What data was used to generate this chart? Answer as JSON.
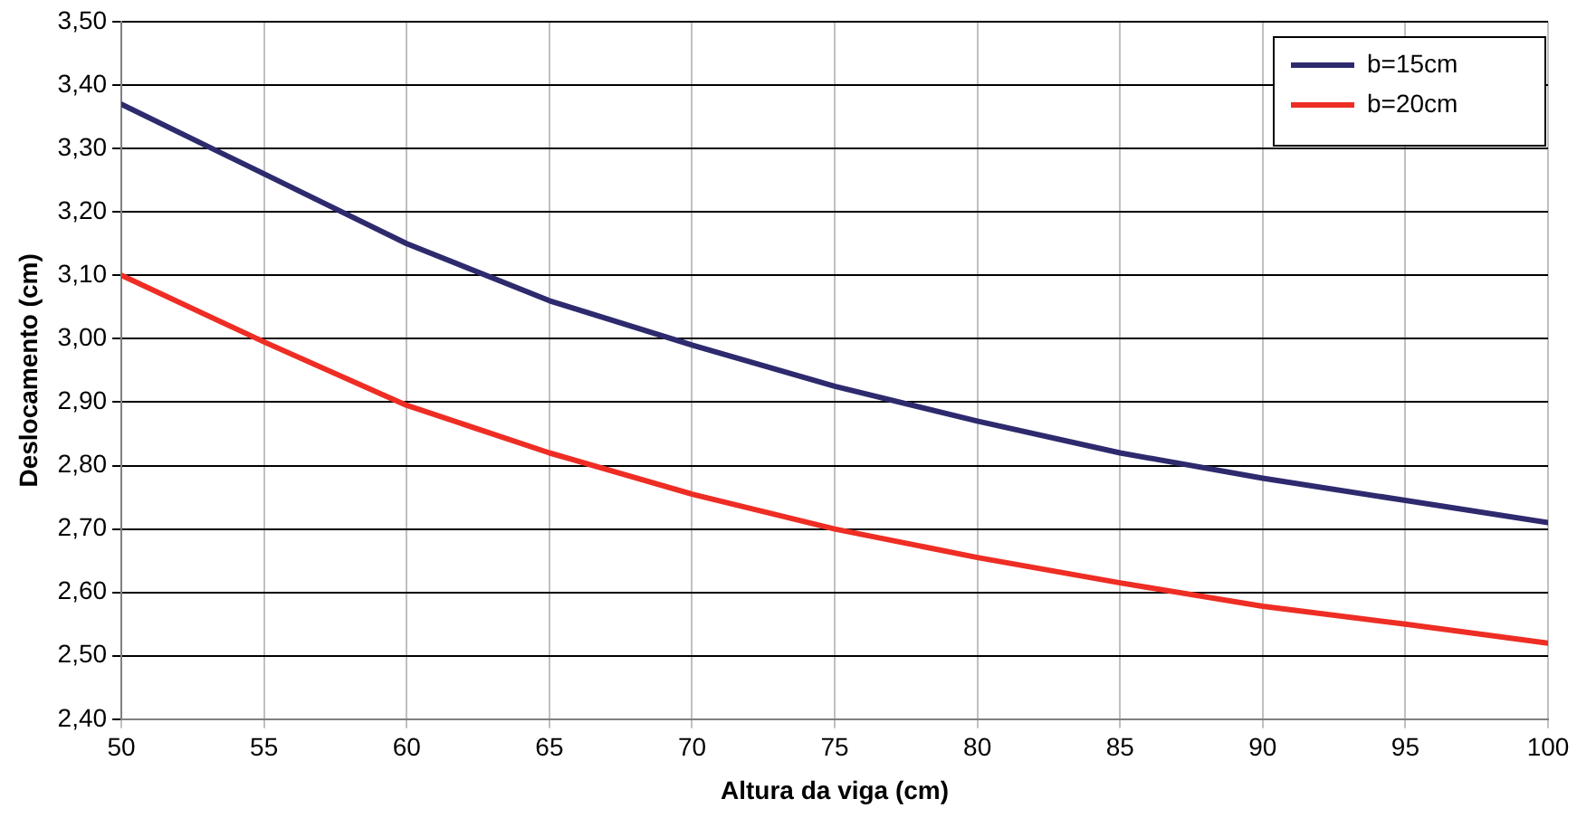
{
  "chart_data": {
    "type": "line",
    "xlabel": "Altura da viga (cm)",
    "ylabel": "Deslocamento (cm)",
    "x": [
      50,
      55,
      60,
      65,
      70,
      75,
      80,
      85,
      90,
      95,
      100
    ],
    "series": [
      {
        "name": "b=15cm",
        "color": "#2e2a6e",
        "values": [
          3.37,
          3.26,
          3.15,
          3.06,
          2.99,
          2.925,
          2.87,
          2.82,
          2.78,
          2.745,
          2.71
        ]
      },
      {
        "name": "b=20cm",
        "color": "#ee2d24",
        "values": [
          3.1,
          2.995,
          2.895,
          2.82,
          2.755,
          2.7,
          2.655,
          2.615,
          2.578,
          2.55,
          2.52
        ]
      }
    ],
    "xlim": [
      50,
      100
    ],
    "xticks": [
      50,
      55,
      60,
      65,
      70,
      75,
      80,
      85,
      90,
      95,
      100
    ],
    "ylim": [
      2.4,
      3.5
    ],
    "yticks": [
      {
        "value": 2.4,
        "label": "2,40"
      },
      {
        "value": 2.5,
        "label": "2,50"
      },
      {
        "value": 2.6,
        "label": "2,60"
      },
      {
        "value": 2.7,
        "label": "2,70"
      },
      {
        "value": 2.8,
        "label": "2,80"
      },
      {
        "value": 2.9,
        "label": "2,90"
      },
      {
        "value": 3.0,
        "label": "3,00"
      },
      {
        "value": 3.1,
        "label": "3,10"
      },
      {
        "value": 3.2,
        "label": "3,20"
      },
      {
        "value": 3.3,
        "label": "3,30"
      },
      {
        "value": 3.4,
        "label": "3,40"
      },
      {
        "value": 3.5,
        "label": "3,50"
      }
    ],
    "grid": true,
    "legend": "top right",
    "marker": "none",
    "line_style": "solid"
  }
}
